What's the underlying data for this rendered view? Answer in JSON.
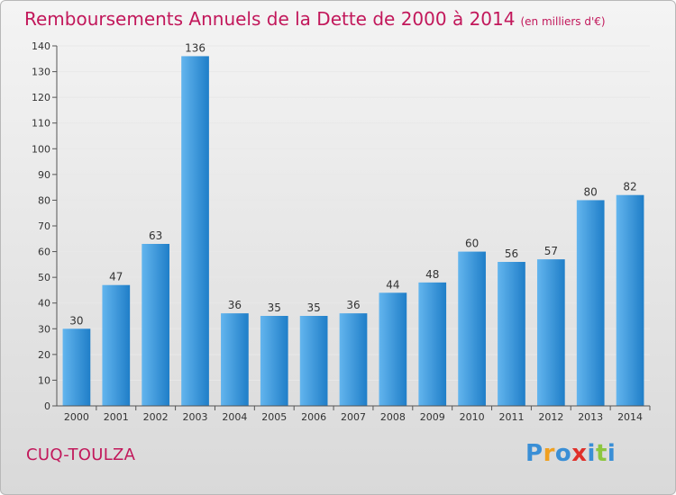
{
  "title": "Remboursements Annuels de la Dette de 2000 à 2014",
  "unit": "(en milliers d'€)",
  "commune": "CUQ-TOULZA",
  "logo": {
    "letters": [
      "P",
      "r",
      "o",
      "x",
      "i",
      "t",
      "i"
    ],
    "colors": [
      "#3a8fd6",
      "#f0a020",
      "#3a8fd6",
      "#e0302a",
      "#3a8fd6",
      "#8cc63f",
      "#3a8fd6"
    ]
  },
  "colors": {
    "bar_light": "#63b5ee",
    "bar_dark": "#1f7ec8",
    "title": "#c2185b"
  },
  "chart_data": {
    "type": "bar",
    "title": "Remboursements Annuels de la Dette de 2000 à 2014",
    "xlabel": "",
    "ylabel": "",
    "categories": [
      "2000",
      "2001",
      "2002",
      "2003",
      "2004",
      "2005",
      "2006",
      "2007",
      "2008",
      "2009",
      "2010",
      "2011",
      "2012",
      "2013",
      "2014"
    ],
    "values": [
      30,
      47,
      63,
      136,
      36,
      35,
      35,
      36,
      44,
      48,
      60,
      56,
      57,
      80,
      82
    ],
    "ylim": [
      0,
      140
    ],
    "yticks": [
      0,
      10,
      20,
      30,
      40,
      50,
      60,
      70,
      80,
      90,
      100,
      110,
      120,
      130,
      140
    ],
    "grid": true,
    "legend": "none"
  }
}
